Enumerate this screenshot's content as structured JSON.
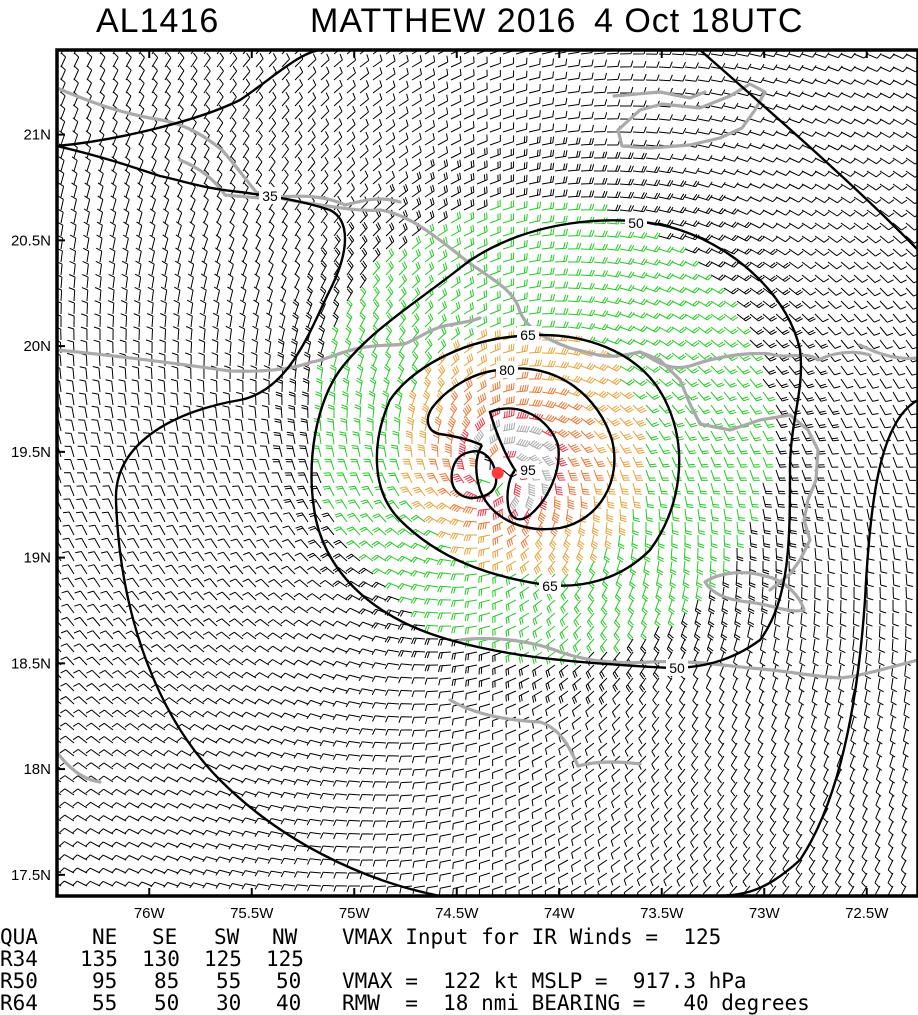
{
  "title": {
    "storm_id": "AL1416",
    "storm_name_year": "MATTHEW 2016",
    "valid_time": "4 Oct 18UTC"
  },
  "map": {
    "lon_range": [
      -76.45,
      -72.25
    ],
    "lat_range": [
      17.4,
      21.4
    ],
    "x_ticks": [
      "76W",
      "75.5W",
      "75W",
      "74.5W",
      "74W",
      "73.5W",
      "73W",
      "72.5W"
    ],
    "x_tick_values": [
      -76,
      -75.5,
      -75,
      -74.5,
      -74,
      -73.5,
      -73,
      -72.5
    ],
    "y_ticks": [
      "17.5N",
      "18N",
      "18.5N",
      "19N",
      "19.5N",
      "20N",
      "20.5N",
      "21N"
    ],
    "y_tick_values": [
      17.5,
      18,
      18.5,
      19,
      19.5,
      20,
      20.5,
      21
    ],
    "center": {
      "lon": -74.3,
      "lat": 19.4
    },
    "contour_labels": [
      "35",
      "50",
      "65",
      "80",
      "95"
    ],
    "barb_colors": {
      "lt34": "#000000",
      "34_50": "#22cc22",
      "50_64": "#e8a33a",
      "64_83": "#ee7733",
      "83_96": "#ee3344",
      "ge96": "#aaaaaa"
    },
    "land_color": "#aaaaaa",
    "center_color": "#ff3b3b"
  },
  "radii_table": {
    "header": [
      "QUA",
      "NE",
      "SE",
      "SW",
      "NW"
    ],
    "rows": [
      {
        "label": "R34",
        "values": [
          "135",
          "130",
          "125",
          "125"
        ]
      },
      {
        "label": "R50",
        "values": [
          "95",
          "85",
          "55",
          "50"
        ]
      },
      {
        "label": "R64",
        "values": [
          "55",
          "50",
          "30",
          "40"
        ]
      }
    ]
  },
  "summary": {
    "line1": "VMAX Input for IR Winds =  125",
    "line2": "VMAX =  122 kt MSLP =  917.3 hPa",
    "line3": "RMW  =  18 nmi BEARING =   40 degrees"
  }
}
